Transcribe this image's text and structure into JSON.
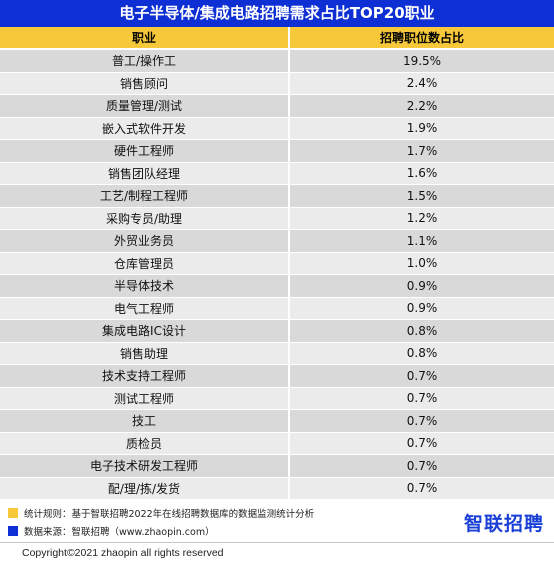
{
  "title": "电子半导体/集成电路招聘需求占比TOP20职业",
  "chart_data": {
    "type": "table",
    "columns": [
      "职业",
      "招聘职位数占比"
    ],
    "rows": [
      {
        "name": "普工/操作工",
        "value": "19.5%"
      },
      {
        "name": "销售顾问",
        "value": "2.4%"
      },
      {
        "name": "质量管理/测试",
        "value": "2.2%"
      },
      {
        "name": "嵌入式软件开发",
        "value": "1.9%"
      },
      {
        "name": "硬件工程师",
        "value": "1.7%"
      },
      {
        "name": "销售团队经理",
        "value": "1.6%"
      },
      {
        "name": "工艺/制程工程师",
        "value": "1.5%"
      },
      {
        "name": "采购专员/助理",
        "value": "1.2%"
      },
      {
        "name": "外贸业务员",
        "value": "1.1%"
      },
      {
        "name": "仓库管理员",
        "value": "1.0%"
      },
      {
        "name": "半导体技术",
        "value": "0.9%"
      },
      {
        "name": "电气工程师",
        "value": "0.9%"
      },
      {
        "name": "集成电路IC设计",
        "value": "0.8%"
      },
      {
        "name": "销售助理",
        "value": "0.8%"
      },
      {
        "name": "技术支持工程师",
        "value": "0.7%"
      },
      {
        "name": "测试工程师",
        "value": "0.7%"
      },
      {
        "name": "技工",
        "value": "0.7%"
      },
      {
        "name": "质检员",
        "value": "0.7%"
      },
      {
        "name": "电子技术研发工程师",
        "value": "0.7%"
      },
      {
        "name": "配/理/拣/发货",
        "value": "0.7%"
      }
    ]
  },
  "footer": {
    "note1": "统计规则：基于智联招聘2022年在线招聘数据库的数据监测统计分析",
    "note2": "数据来源：智联招聘（www.zhaopin.com）",
    "note1_color": "#f7c93a",
    "note2_color": "#0e2fd4",
    "logo": "智联招聘",
    "copyright": "Copyright©2021 zhaopin all rights reserved"
  }
}
